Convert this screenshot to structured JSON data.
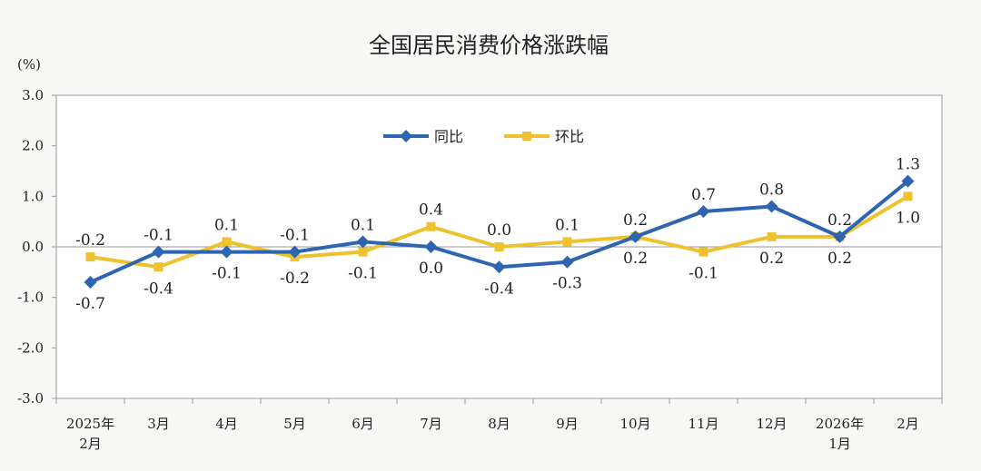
{
  "chart_data": {
    "type": "line",
    "title": "全国居民消费价格涨跌幅",
    "unit_label": "(%)",
    "xlabel": "",
    "ylabel": "",
    "ylim": [
      -3.0,
      3.0
    ],
    "yticks": [
      "3.0",
      "2.0",
      "1.0",
      "0.0",
      "-1.0",
      "-2.0",
      "-3.0"
    ],
    "ytick_values": [
      3,
      2,
      1,
      0,
      -1,
      -2,
      -3
    ],
    "categories": [
      [
        "2025年",
        "2月"
      ],
      [
        "3月"
      ],
      [
        "4月"
      ],
      [
        "5月"
      ],
      [
        "6月"
      ],
      [
        "7月"
      ],
      [
        "8月"
      ],
      [
        "9月"
      ],
      [
        "10月"
      ],
      [
        "11月"
      ],
      [
        "12月"
      ],
      [
        "2026年",
        "1月"
      ],
      [
        "2月"
      ]
    ],
    "legend_position": "top-center",
    "grid": false,
    "series": [
      {
        "name": "同比",
        "color": "#2f65b0",
        "marker": "diamond",
        "values": [
          -0.7,
          -0.1,
          -0.1,
          -0.1,
          0.1,
          0.0,
          -0.4,
          -0.3,
          0.2,
          0.7,
          0.8,
          0.2,
          1.3
        ],
        "labels": [
          "-0.7",
          "-0.1",
          "-0.1",
          "-0.1",
          "0.1",
          "0.0",
          "-0.4",
          "-0.3",
          "0.2",
          "0.7",
          "0.8",
          "0.2",
          "1.3"
        ],
        "label_side": [
          "below",
          "above",
          "below",
          "above",
          "above",
          "below",
          "below",
          "below",
          "above",
          "above",
          "above",
          "above",
          "above"
        ]
      },
      {
        "name": "环比",
        "color": "#eec12e",
        "marker": "square",
        "values": [
          -0.2,
          -0.4,
          0.1,
          -0.2,
          -0.1,
          0.4,
          0.0,
          0.1,
          0.2,
          -0.1,
          0.2,
          0.2,
          1.0
        ],
        "labels": [
          "-0.2",
          "-0.4",
          "0.1",
          "-0.2",
          "-0.1",
          "0.4",
          "0.0",
          "0.1",
          "0.2",
          "-0.1",
          "0.2",
          "0.2",
          "1.0"
        ],
        "label_side": [
          "above",
          "below",
          "above",
          "below",
          "below",
          "above",
          "above",
          "above",
          "below",
          "below",
          "below",
          "below",
          "below"
        ]
      }
    ]
  }
}
